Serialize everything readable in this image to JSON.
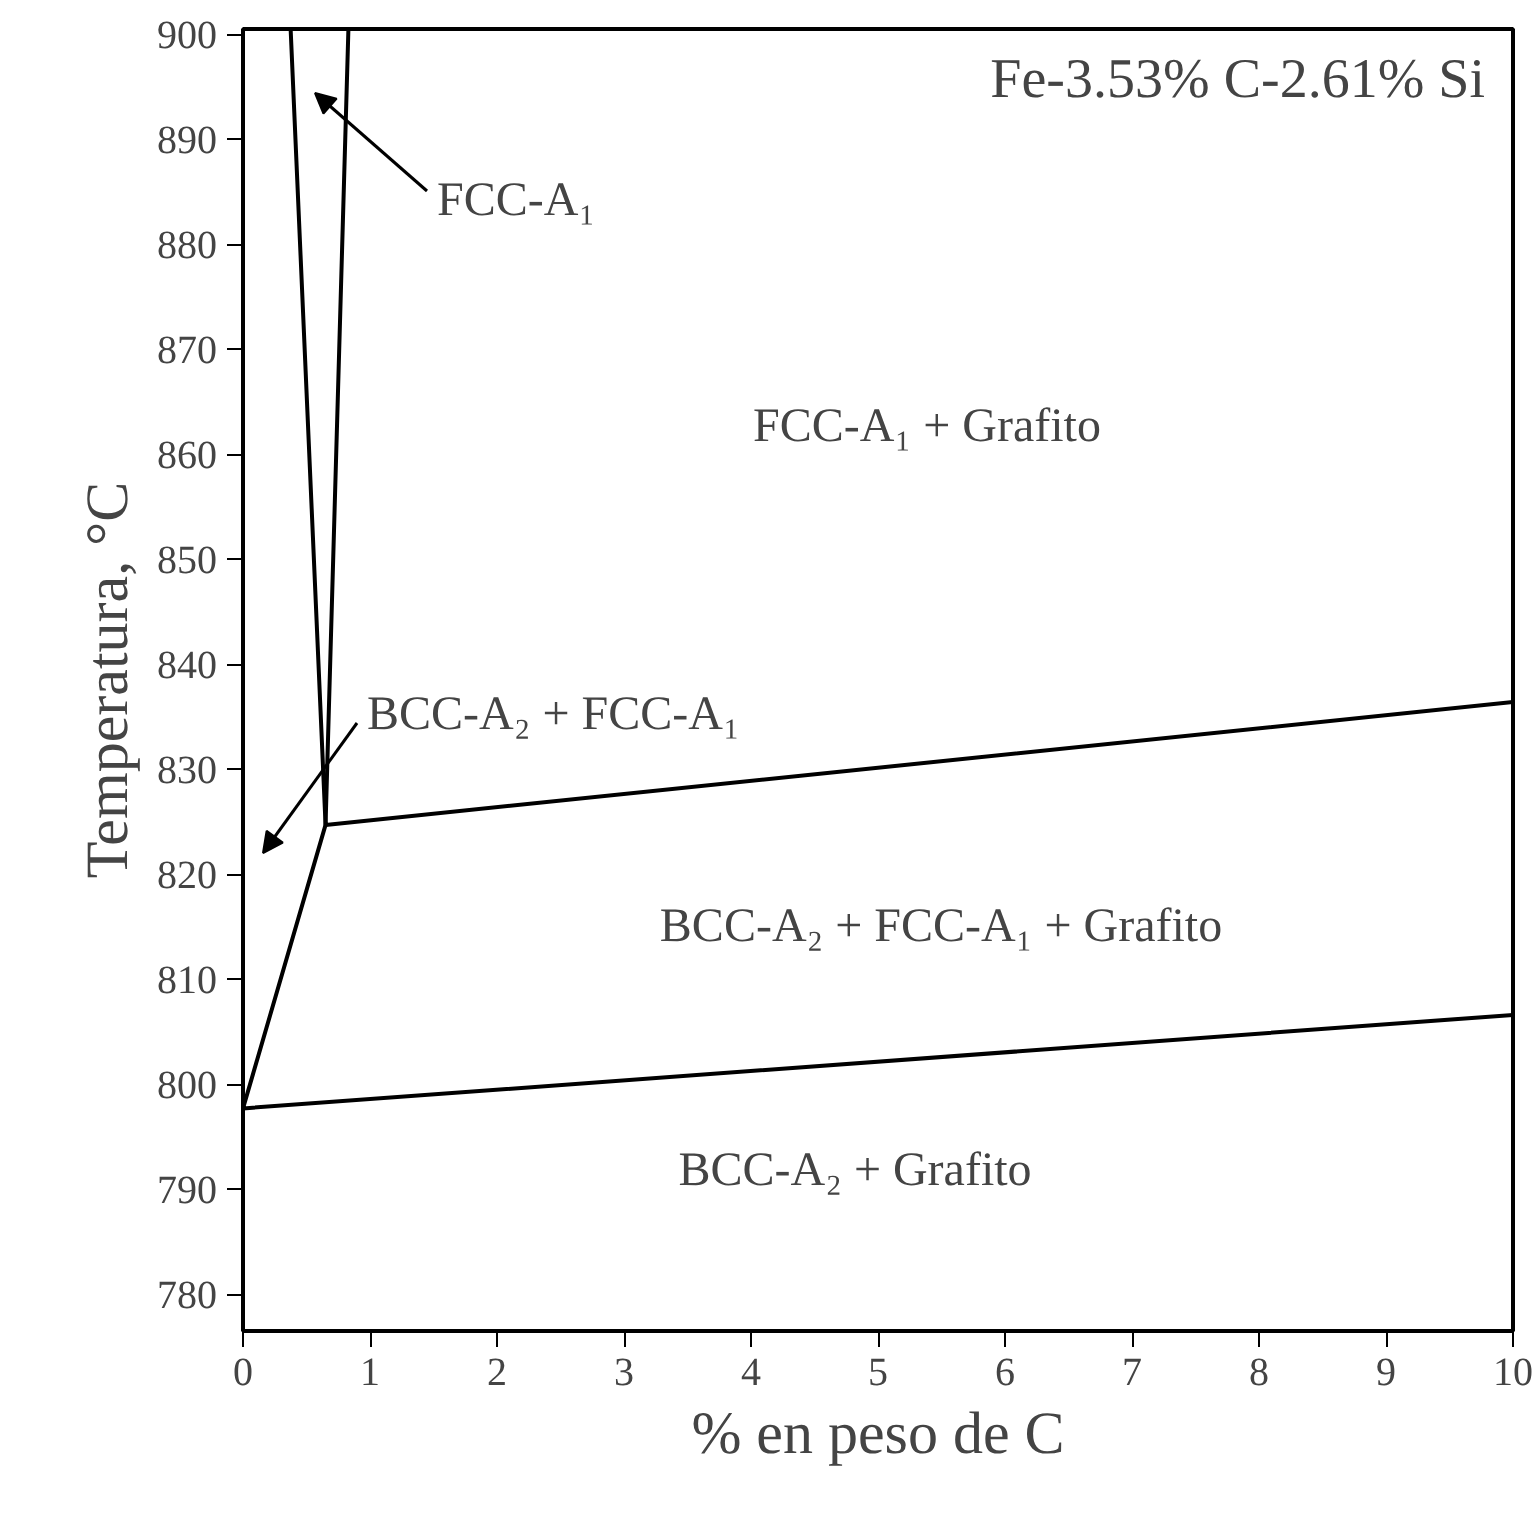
{
  "chart_data": {
    "type": "line",
    "title": "Fe-3.53% C-2.61% Si",
    "xlabel": "% en peso de C",
    "ylabel": "Temperatura, °C",
    "series": [
      {
        "x": [
          10,
          0,
          0.65,
          0.375
        ],
        "values": [
          806.6,
          797.7,
          824.7,
          900.5
        ],
        "color": "#000000"
      },
      {
        "x": [
          0.83,
          0.65,
          10
        ],
        "values": [
          900.5,
          824.7,
          836.4
        ],
        "color": "#000000"
      }
    ],
    "annotations": [
      "FCC-A₁",
      "BCC-A₂ + FCC-A₁",
      "FCC-A₁ + Grafito",
      "BCC-A₂ + FCC-A₁ + Grafito",
      "BCC-A₂ + Grafito"
    ],
    "xlim": [
      0,
      10
    ],
    "ylim": [
      776.5,
      900.5
    ],
    "xticks": [
      0,
      1,
      2,
      3,
      4,
      5,
      6,
      7,
      8,
      9,
      10
    ],
    "yticks": [
      780,
      790,
      800,
      810,
      820,
      830,
      840,
      850,
      860,
      870,
      880,
      890,
      900
    ],
    "grid": false,
    "marker": "none",
    "line_style": "solid"
  }
}
